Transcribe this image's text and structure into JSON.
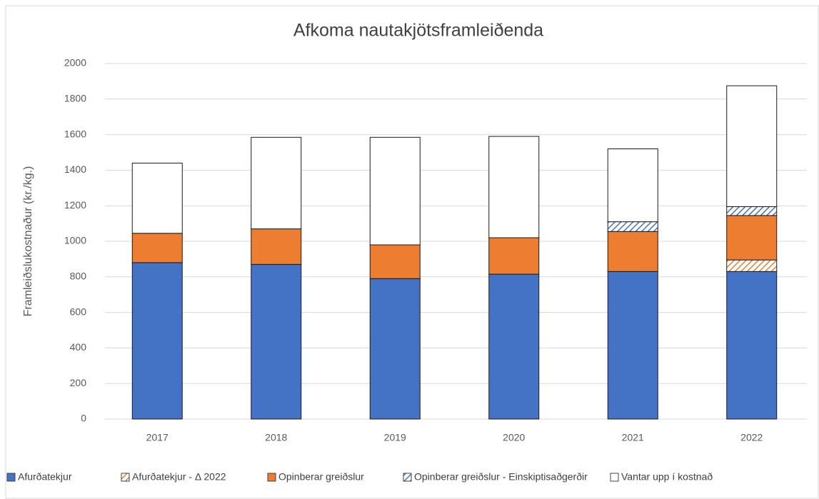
{
  "chart_data": {
    "type": "stacked_bar",
    "title": "Afkoma nautakjötsframleiðenda",
    "y_label": "Framleiðslukostnaður (kr./kg.)",
    "categories": [
      "2017",
      "2018",
      "2019",
      "2020",
      "2021",
      "2022"
    ],
    "series": [
      {
        "name": "Afurðatekjur",
        "color": "#4472c4",
        "hatch": false,
        "values": [
          880,
          870,
          790,
          815,
          830,
          830
        ]
      },
      {
        "name": "Afurðatekjur - Δ 2022",
        "color": "#4472c4",
        "hatch": true,
        "values": [
          null,
          null,
          null,
          null,
          null,
          65
        ]
      },
      {
        "name": "Opinberar greiðslur",
        "color": "#ed7d31",
        "hatch": false,
        "values": [
          165,
          200,
          190,
          205,
          225,
          250
        ]
      },
      {
        "name": "Opinberar greiðslur - Einskiptisaðgerðir",
        "color": "#ed7d31",
        "hatch": true,
        "values": [
          null,
          null,
          null,
          null,
          55,
          50
        ]
      },
      {
        "name": "Vantar upp í kostnað",
        "color": "#ffffff",
        "hatch": false,
        "values": [
          395,
          515,
          605,
          570,
          410,
          680
        ]
      }
    ],
    "ylim": [
      0,
      2000
    ],
    "yticks": [
      0,
      200,
      400,
      600,
      800,
      1000,
      1200,
      1400,
      1600,
      1800,
      2000
    ],
    "grid": true,
    "legend": "bottom"
  }
}
